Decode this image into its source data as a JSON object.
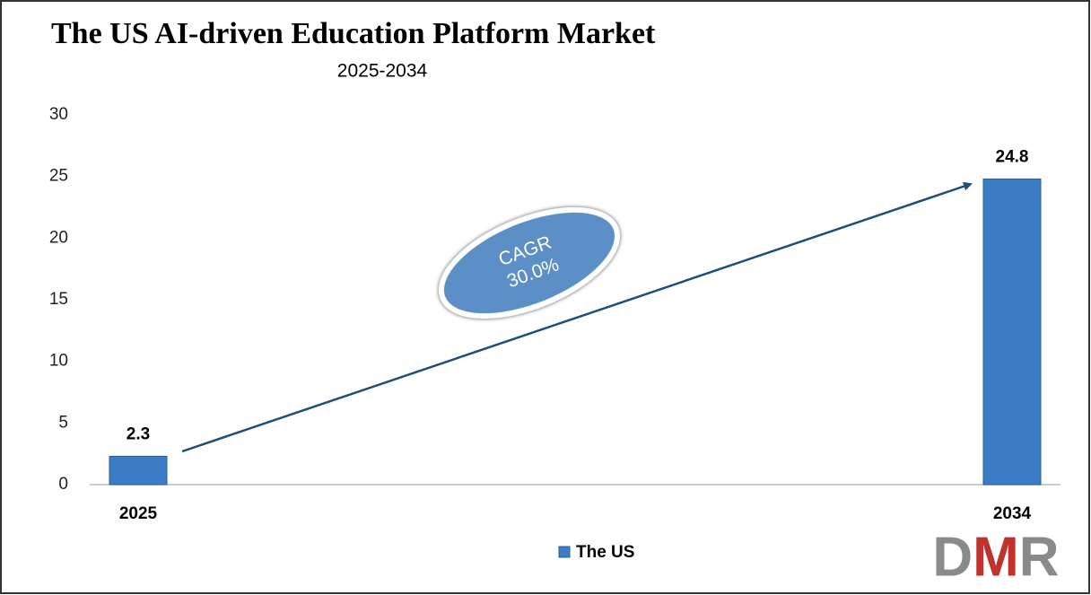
{
  "chart_data": {
    "type": "bar",
    "title": "The US AI-driven Education Platform Market",
    "subtitle": "2025-2034",
    "categories": [
      "2025",
      "2034"
    ],
    "series": [
      {
        "name": "The US",
        "color": "#3b7dc4",
        "values": [
          2.3,
          24.8
        ]
      }
    ],
    "ylim": [
      0,
      30
    ],
    "yticks": [
      0,
      5,
      10,
      15,
      20,
      25,
      30
    ],
    "grid": false,
    "legend": "bottom",
    "annotation": [
      "CAGR",
      "30.0%"
    ],
    "logo": "DMR"
  }
}
